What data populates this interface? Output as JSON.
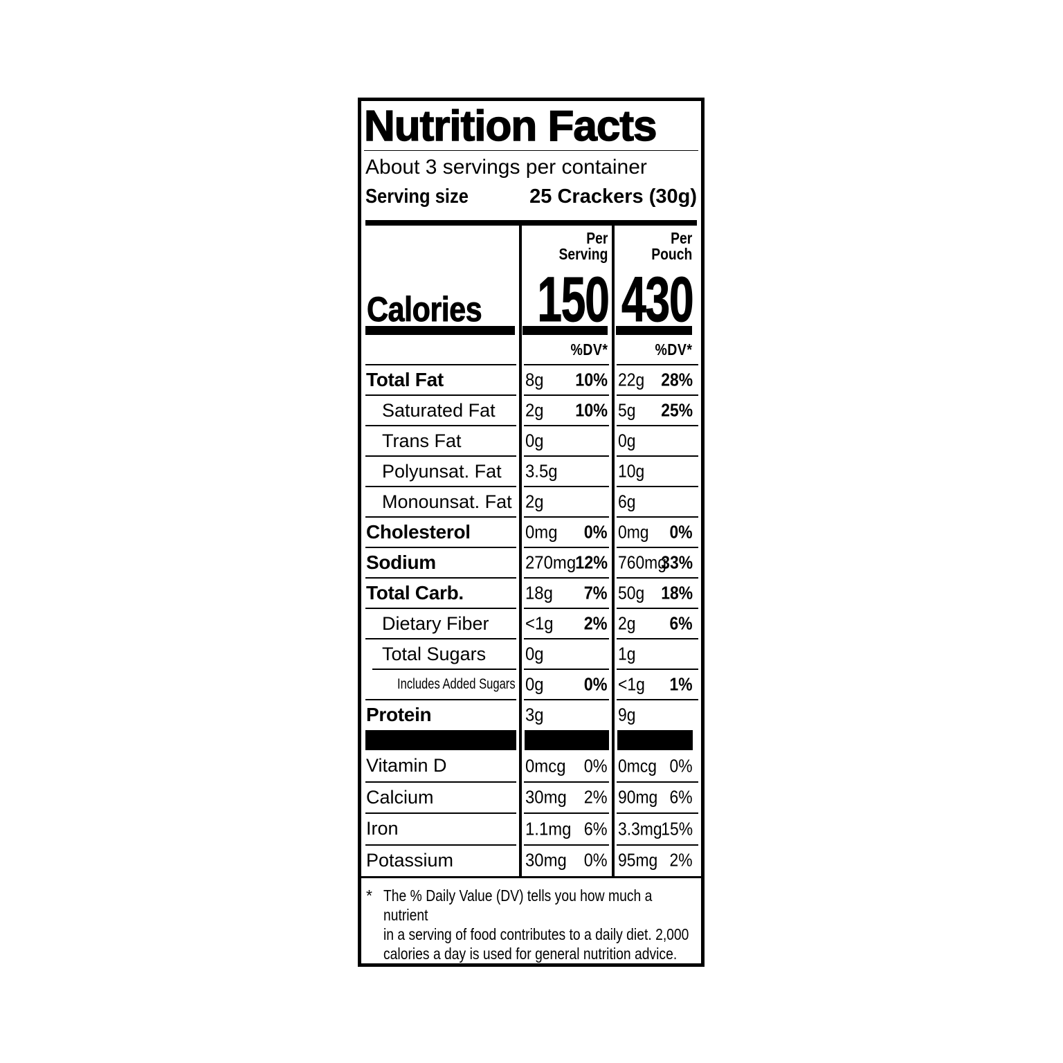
{
  "colors": {
    "ink": "#000000",
    "background": "#ffffff"
  },
  "label": {
    "title": "Nutrition Facts",
    "servings_per_container": "About 3 servings per container",
    "serving_size_label": "Serving size",
    "serving_size_value": "25 Crackers (30g)",
    "calories": {
      "label": "Calories",
      "dv_header": "%DV*",
      "columns": [
        {
          "header_line1": "Per",
          "header_line2": "Serving",
          "value": "150"
        },
        {
          "header_line1": "Per",
          "header_line2": "Pouch",
          "value": "430"
        }
      ]
    },
    "rows": [
      {
        "label": "Total Fat",
        "style": "bold",
        "serving_amount": "8g",
        "serving_dv": "10%",
        "pouch_amount": "22g",
        "pouch_dv": "28%"
      },
      {
        "label": "Saturated Fat",
        "style": "indent1",
        "serving_amount": "2g",
        "serving_dv": "10%",
        "pouch_amount": "5g",
        "pouch_dv": "25%"
      },
      {
        "label": "Trans Fat",
        "style": "indent1",
        "serving_amount": "0g",
        "serving_dv": "",
        "pouch_amount": "0g",
        "pouch_dv": ""
      },
      {
        "label": "Polyunsat. Fat",
        "style": "indent1",
        "serving_amount": "3.5g",
        "serving_dv": "",
        "pouch_amount": "10g",
        "pouch_dv": ""
      },
      {
        "label": "Monounsat. Fat",
        "style": "indent1",
        "serving_amount": "2g",
        "serving_dv": "",
        "pouch_amount": "6g",
        "pouch_dv": ""
      },
      {
        "label": "Cholesterol",
        "style": "bold",
        "serving_amount": "0mg",
        "serving_dv": "0%",
        "pouch_amount": "0mg",
        "pouch_dv": "0%"
      },
      {
        "label": "Sodium",
        "style": "bold",
        "serving_amount": "270mg",
        "serving_dv": "12%",
        "pouch_amount": "760mg",
        "pouch_dv": "33%"
      },
      {
        "label": "Total Carb.",
        "style": "bold",
        "serving_amount": "18g",
        "serving_dv": "7%",
        "pouch_amount": "50g",
        "pouch_dv": "18%"
      },
      {
        "label": "Dietary Fiber",
        "style": "indent1",
        "serving_amount": "<1g",
        "serving_dv": "2%",
        "pouch_amount": "2g",
        "pouch_dv": "6%"
      },
      {
        "label": "Total Sugars",
        "style": "indent1",
        "serving_amount": "0g",
        "serving_dv": "",
        "pouch_amount": "1g",
        "pouch_dv": ""
      },
      {
        "label": "Includes Added Sugars",
        "style": "indent2",
        "serving_amount": "0g",
        "serving_dv": "0%",
        "pouch_amount": "<1g",
        "pouch_dv": "1%"
      },
      {
        "label": "Protein",
        "style": "bold",
        "serving_amount": "3g",
        "serving_dv": "",
        "pouch_amount": "9g",
        "pouch_dv": ""
      }
    ],
    "vitamin_rows": [
      {
        "label": "Vitamin D",
        "serving_amount": "0mcg",
        "serving_dv": "0%",
        "pouch_amount": "0mcg",
        "pouch_dv": "0%"
      },
      {
        "label": "Calcium",
        "serving_amount": "30mg",
        "serving_dv": "2%",
        "pouch_amount": "90mg",
        "pouch_dv": "6%"
      },
      {
        "label": "Iron",
        "serving_amount": "1.1mg",
        "serving_dv": "6%",
        "pouch_amount": "3.3mg",
        "pouch_dv": "15%"
      },
      {
        "label": "Potassium",
        "serving_amount": "30mg",
        "serving_dv": "0%",
        "pouch_amount": "95mg",
        "pouch_dv": "2%"
      }
    ],
    "footnote": {
      "marker": "*",
      "lines": [
        "The % Daily Value (DV) tells you how much a nutrient",
        "in a serving of food contributes to a daily diet. 2,000",
        "calories a day is used for general nutrition advice."
      ]
    }
  }
}
